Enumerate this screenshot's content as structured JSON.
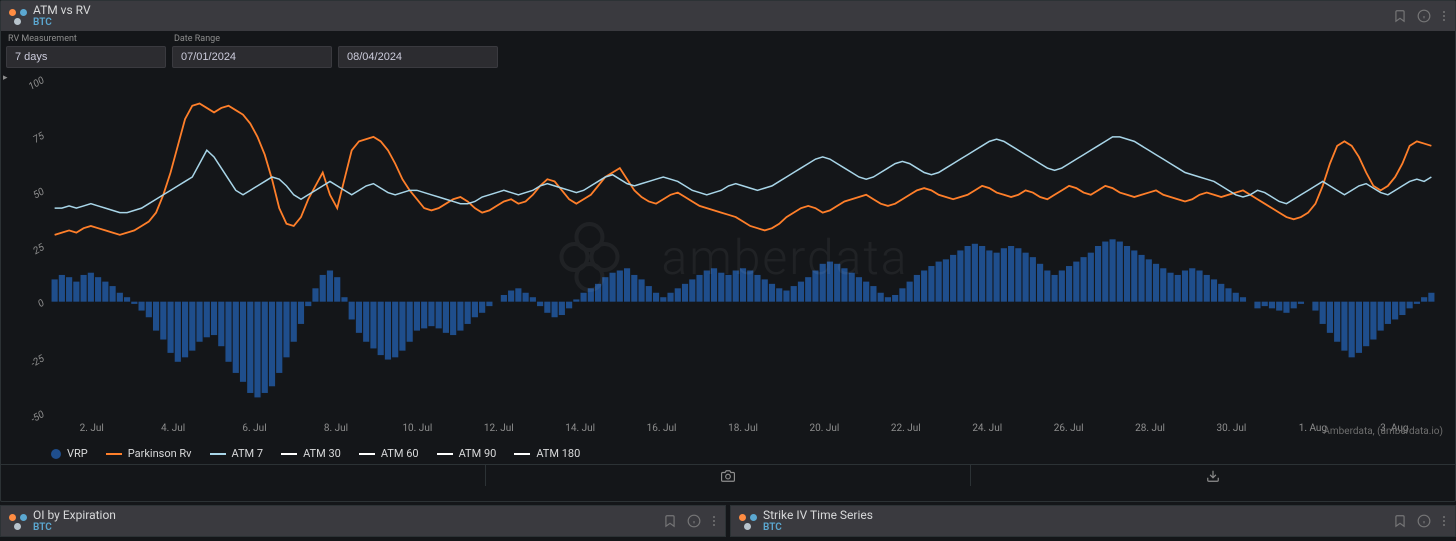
{
  "main_panel": {
    "title": "ATM vs RV",
    "subtitle": "BTC",
    "controls": {
      "rv_measurement_label": "RV Measurement",
      "rv_measurement_value": "7 days",
      "date_range_label": "Date Range",
      "date_from": "07/01/2024",
      "date_to": "08/04/2024"
    },
    "attribution": "Amberdata, (amberdata.io)",
    "watermark_text": "amberdata"
  },
  "chart": {
    "type": "combo_bar_line",
    "background_color": "#141619",
    "axis_color": "#8e8e8e",
    "axis_fontsize": 10,
    "y": {
      "min": -50,
      "max": 100,
      "ticks": [
        -50,
        -25,
        0,
        25,
        50,
        75,
        100
      ]
    },
    "x": {
      "labels": [
        "2. Jul",
        "4. Jul",
        "6. Jul",
        "8. Jul",
        "10. Jul",
        "12. Jul",
        "14. Jul",
        "16. Jul",
        "18. Jul",
        "20. Jul",
        "22. Jul",
        "24. Jul",
        "26. Jul",
        "28. Jul",
        "30. Jul",
        "1. Aug",
        "3. Aug"
      ]
    },
    "series": {
      "vrp": {
        "label": "VRP",
        "type": "bar",
        "color": "#1f4e8c",
        "values": [
          10,
          12,
          11,
          9,
          12,
          13,
          11,
          9,
          7,
          4,
          2,
          -1,
          -4,
          -7,
          -13,
          -17,
          -23,
          -27,
          -25,
          -22,
          -18,
          -16,
          -15,
          -20,
          -27,
          -32,
          -36,
          -41,
          -43,
          -41,
          -38,
          -32,
          -25,
          -18,
          -10,
          -2,
          6,
          12,
          14,
          11,
          2,
          -8,
          -14,
          -18,
          -21,
          -24,
          -26,
          -25,
          -22,
          -18,
          -13,
          -12,
          -11,
          -12,
          -14,
          -15,
          -13,
          -10,
          -7,
          -5,
          -2,
          0,
          3,
          5,
          6,
          4,
          2,
          -2,
          -5,
          -7,
          -6,
          -3,
          1,
          4,
          6,
          8,
          11,
          13,
          14,
          15,
          12,
          10,
          7,
          4,
          2,
          4,
          6,
          8,
          10,
          12,
          14,
          15,
          13,
          12,
          14,
          15,
          14,
          12,
          10,
          8,
          6,
          5,
          7,
          9,
          11,
          14,
          17,
          18,
          17,
          15,
          13,
          11,
          9,
          7,
          4,
          2,
          3,
          6,
          9,
          12,
          14,
          16,
          18,
          19,
          21,
          23,
          25,
          26,
          25,
          23,
          22,
          24,
          25,
          24,
          22,
          20,
          17,
          14,
          12,
          14,
          16,
          18,
          20,
          22,
          25,
          27,
          28,
          27,
          25,
          23,
          21,
          19,
          17,
          15,
          13,
          12,
          14,
          15,
          14,
          12,
          10,
          8,
          6,
          4,
          2,
          0,
          -3,
          -2,
          -3,
          -4,
          -5,
          -3,
          -1,
          0,
          -4,
          -10,
          -14,
          -18,
          -22,
          -25,
          -23,
          -20,
          -17,
          -13,
          -10,
          -8,
          -6,
          -3,
          -1,
          2,
          4
        ]
      },
      "parkinson_rv": {
        "label": "Parkinson Rv",
        "type": "line",
        "color": "#ff7f2a",
        "width": 1.8,
        "values": [
          30,
          31,
          32,
          31,
          33,
          34,
          33,
          32,
          31,
          30,
          31,
          32,
          34,
          36,
          40,
          48,
          58,
          70,
          82,
          88,
          89,
          87,
          85,
          87,
          88,
          86,
          84,
          80,
          74,
          66,
          55,
          42,
          35,
          34,
          38,
          46,
          52,
          58,
          48,
          42,
          55,
          68,
          72,
          73,
          74,
          72,
          68,
          62,
          55,
          50,
          46,
          42,
          41,
          42,
          44,
          46,
          47,
          45,
          42,
          40,
          41,
          43,
          45,
          46,
          44,
          45,
          48,
          52,
          55,
          54,
          50,
          46,
          44,
          46,
          48,
          52,
          56,
          58,
          60,
          55,
          50,
          47,
          45,
          44,
          46,
          48,
          49,
          47,
          45,
          43,
          42,
          41,
          40,
          39,
          38,
          36,
          34,
          33,
          32,
          33,
          35,
          38,
          40,
          42,
          43,
          42,
          40,
          41,
          43,
          45,
          46,
          47,
          48,
          46,
          44,
          43,
          44,
          46,
          48,
          50,
          51,
          50,
          48,
          47,
          46,
          47,
          48,
          50,
          52,
          51,
          49,
          48,
          47,
          48,
          50,
          49,
          47,
          46,
          48,
          50,
          52,
          51,
          49,
          48,
          50,
          52,
          51,
          49,
          48,
          47,
          48,
          49,
          50,
          48,
          47,
          46,
          45,
          46,
          48,
          49,
          48,
          47,
          48,
          49,
          50,
          48,
          46,
          44,
          42,
          40,
          38,
          37,
          38,
          40,
          44,
          52,
          62,
          70,
          72,
          70,
          65,
          58,
          52,
          50,
          52,
          56,
          62,
          70,
          72,
          71,
          70
        ]
      },
      "atm7": {
        "label": "ATM 7",
        "type": "line",
        "color": "#a8d5e8",
        "width": 1.5,
        "values": [
          42,
          42,
          43,
          42,
          43,
          44,
          43,
          42,
          41,
          40,
          40,
          41,
          42,
          44,
          46,
          48,
          50,
          52,
          54,
          56,
          62,
          68,
          65,
          60,
          55,
          50,
          48,
          50,
          52,
          54,
          56,
          55,
          52,
          48,
          46,
          48,
          50,
          52,
          54,
          52,
          50,
          48,
          50,
          52,
          53,
          51,
          49,
          48,
          49,
          50,
          50,
          49,
          48,
          47,
          46,
          45,
          44,
          44,
          45,
          47,
          48,
          49,
          50,
          49,
          48,
          49,
          50,
          52,
          53,
          52,
          51,
          50,
          49,
          50,
          52,
          54,
          56,
          57,
          55,
          53,
          52,
          53,
          54,
          55,
          56,
          55,
          54,
          52,
          50,
          49,
          48,
          49,
          50,
          52,
          53,
          52,
          51,
          50,
          51,
          52,
          54,
          56,
          58,
          60,
          62,
          64,
          65,
          64,
          62,
          60,
          58,
          56,
          55,
          56,
          58,
          60,
          62,
          63,
          62,
          60,
          58,
          57,
          58,
          60,
          62,
          64,
          66,
          68,
          70,
          72,
          73,
          72,
          70,
          68,
          66,
          64,
          62,
          60,
          59,
          60,
          62,
          64,
          66,
          68,
          70,
          72,
          74,
          74,
          73,
          72,
          70,
          68,
          66,
          64,
          62,
          60,
          58,
          57,
          56,
          55,
          54,
          52,
          50,
          48,
          47,
          48,
          50,
          49,
          47,
          45,
          44,
          46,
          48,
          50,
          52,
          54,
          52,
          50,
          48,
          50,
          52,
          53,
          51,
          49,
          48,
          50,
          52,
          54,
          55,
          54,
          56
        ]
      },
      "atm30": {
        "label": "ATM 30",
        "type": "line",
        "color": "#ffffff",
        "width": 1.2,
        "values": []
      },
      "atm60": {
        "label": "ATM 60",
        "type": "line",
        "color": "#ffffff",
        "width": 1.2,
        "values": []
      },
      "atm90": {
        "label": "ATM 90",
        "type": "line",
        "color": "#ffffff",
        "width": 1.2,
        "values": []
      },
      "atm180": {
        "label": "ATM 180",
        "type": "line",
        "color": "#ffffff",
        "width": 1.2,
        "values": []
      }
    },
    "legend_order": [
      "vrp",
      "parkinson_rv",
      "atm7",
      "atm30",
      "atm60",
      "atm90",
      "atm180"
    ]
  },
  "bottom_panels": {
    "left": {
      "title": "OI by Expiration",
      "subtitle": "BTC"
    },
    "right": {
      "title": "Strike IV Time Series",
      "subtitle": "BTC"
    }
  }
}
